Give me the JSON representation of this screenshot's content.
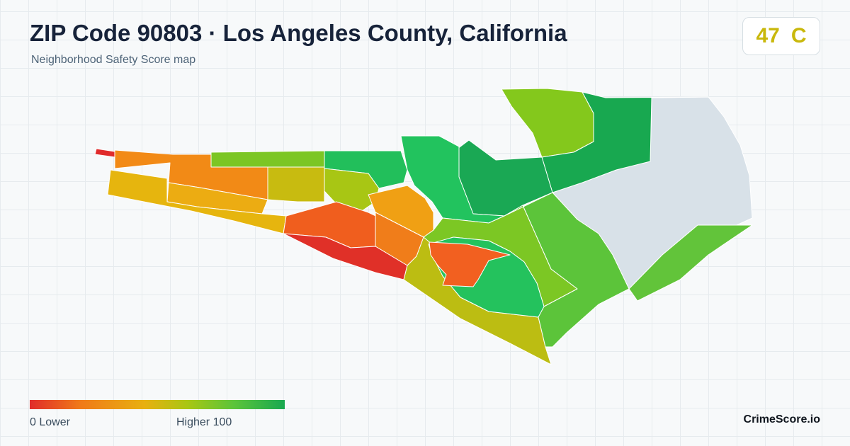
{
  "header": {
    "title": "ZIP Code 90803 · Los Angeles County, California",
    "subtitle": "Neighborhood Safety Score map"
  },
  "score_badge": {
    "score": "47",
    "grade": "C",
    "color": "#c9b80c"
  },
  "legend": {
    "min_label": "0  Lower",
    "max_label": "Higher  100",
    "gradient_colors": [
      "#e02b2b",
      "#f07a18",
      "#e8b010",
      "#a8c614",
      "#5cc43a",
      "#18a850"
    ]
  },
  "map": {
    "no_data_color": "#d8e1e8",
    "regions": [
      {
        "name": "region-northeast-grey",
        "score": null,
        "color": "#d8e1e8"
      },
      {
        "name": "region-north-light",
        "score": 70,
        "color": "#84c81c"
      },
      {
        "name": "region-north-green",
        "score": 88,
        "color": "#1caa55"
      },
      {
        "name": "region-central-green",
        "score": 85,
        "color": "#22c35e"
      },
      {
        "name": "region-east-green",
        "score": 78,
        "color": "#5cc43a"
      },
      {
        "name": "region-southeast-green",
        "score": 76,
        "color": "#62c43a"
      },
      {
        "name": "region-southwest-red",
        "score": 8,
        "color": "#e03028"
      },
      {
        "name": "region-inner-orange",
        "score": 22,
        "color": "#f26020"
      }
    ]
  },
  "branding": {
    "name": "CrimeScore.io"
  }
}
